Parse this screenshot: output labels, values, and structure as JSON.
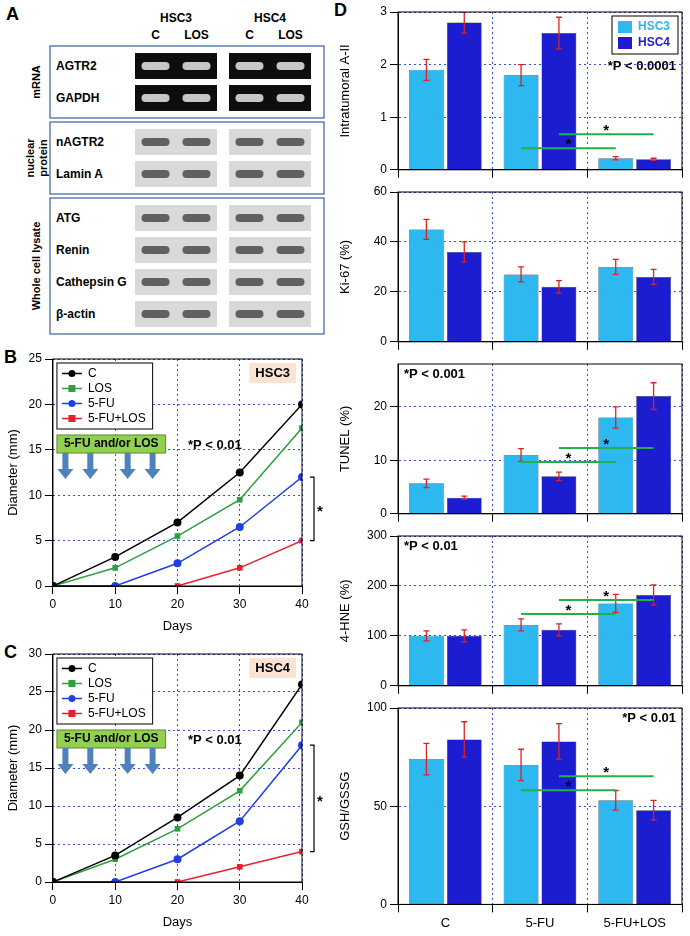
{
  "panel_a": {
    "label": "A",
    "cell_lines": [
      "HSC3",
      "HSC4"
    ],
    "lanes": [
      "C",
      "LOS"
    ],
    "groups": [
      {
        "name": "mRNA",
        "band_style": "light_on_dark",
        "rows": [
          "AGTR2",
          "GAPDH"
        ]
      },
      {
        "name": "nuclear protein",
        "band_style": "dark_on_light",
        "rows": [
          "nAGTR2",
          "Lamin A"
        ]
      },
      {
        "name": "Whole cell lysate",
        "band_style": "dark_on_light",
        "rows": [
          "ATG",
          "Renin",
          "Cathepsin G",
          "β-actin"
        ]
      }
    ]
  },
  "chart_data": [
    {
      "panel": "B",
      "type": "line",
      "title": "HSC3",
      "x_label": "Days",
      "y_label": "Diameter (mm)",
      "x": [
        0,
        10,
        20,
        30,
        40
      ],
      "xlim": [
        0,
        40
      ],
      "xticks": [
        0,
        10,
        20,
        30,
        40
      ],
      "ylim": [
        0,
        25
      ],
      "yticks": [
        0,
        5,
        10,
        15,
        20,
        25
      ],
      "grid": true,
      "legend": "top-left",
      "series": [
        {
          "name": "C",
          "color": "#000000",
          "marker": "circle",
          "values": [
            0,
            3.2,
            7,
            12.5,
            20
          ]
        },
        {
          "name": "LOS",
          "color": "#2e9e3e",
          "marker": "square",
          "values": [
            0,
            2,
            5.5,
            9.5,
            17.4
          ]
        },
        {
          "name": "5-FU",
          "color": "#1f3fe0",
          "marker": "circle",
          "values": [
            0,
            0,
            2.5,
            6.5,
            12
          ]
        },
        {
          "name": "5-FU+LOS",
          "color": "#e8202a",
          "marker": "square",
          "values": [
            0,
            0,
            0,
            2,
            5
          ]
        }
      ],
      "treatment": {
        "label": "5-FU and/or LOS",
        "days": [
          2,
          6,
          12,
          16
        ]
      },
      "annotations": [
        {
          "text": "*P < 0.01"
        }
      ],
      "comparisons": [
        {
          "text": "*",
          "series": [
            "5-FU",
            "5-FU+LOS"
          ],
          "at": 40
        }
      ]
    },
    {
      "panel": "C",
      "type": "line",
      "title": "HSC4",
      "x_label": "Days",
      "y_label": "Diameter (mm)",
      "x": [
        0,
        10,
        20,
        30,
        40
      ],
      "xlim": [
        0,
        40
      ],
      "xticks": [
        0,
        10,
        20,
        30,
        40
      ],
      "ylim": [
        0,
        30
      ],
      "yticks": [
        0,
        5,
        10,
        15,
        20,
        25,
        30
      ],
      "grid": true,
      "legend": "top-left",
      "series": [
        {
          "name": "C",
          "color": "#000000",
          "marker": "circle",
          "values": [
            0,
            3.5,
            8.5,
            14,
            26
          ]
        },
        {
          "name": "LOS",
          "color": "#2e9e3e",
          "marker": "square",
          "values": [
            0,
            3,
            7,
            12,
            21
          ]
        },
        {
          "name": "5-FU",
          "color": "#1f3fe0",
          "marker": "circle",
          "values": [
            0,
            0,
            3,
            8,
            18
          ]
        },
        {
          "name": "5-FU+LOS",
          "color": "#e8202a",
          "marker": "square",
          "values": [
            0,
            0,
            0,
            2,
            4
          ]
        }
      ],
      "treatment": {
        "label": "5-FU and/or LOS",
        "days": [
          2,
          6,
          12,
          16
        ]
      },
      "annotations": [
        {
          "text": "*P < 0.01"
        }
      ],
      "comparisons": [
        {
          "text": "*",
          "series": [
            "5-FU",
            "5-FU+LOS"
          ],
          "at": 40
        }
      ]
    },
    {
      "panel": "D",
      "type": "bar",
      "y_label": "Intratumoral A-II",
      "categories": [
        "C",
        "5-FU",
        "5-FU+LOS"
      ],
      "ylim": [
        0,
        3
      ],
      "yticks": [
        0,
        1,
        2,
        3
      ],
      "grid": true,
      "legend": "top-right",
      "tick_labels": "y",
      "series": [
        {
          "name": "HSC3",
          "color": "#2db8ef",
          "values": [
            1.9,
            1.8,
            0.22
          ],
          "errors": [
            0.2,
            0.2,
            0.03
          ]
        },
        {
          "name": "HSC4",
          "color": "#1c1cd0",
          "values": [
            2.8,
            2.6,
            0.2
          ],
          "errors": [
            0.2,
            0.3,
            0.02
          ]
        }
      ],
      "annotations": [
        {
          "text": "*P < 0.0001"
        }
      ],
      "comparisons": [
        {
          "text": "*",
          "series": "HSC3",
          "from": "5-FU",
          "to": "5-FU+LOS"
        },
        {
          "text": "*",
          "series": "HSC4",
          "from": "5-FU",
          "to": "5-FU+LOS"
        }
      ]
    },
    {
      "type": "bar",
      "y_label": "Ki-67 (%)",
      "categories": [
        "C",
        "5-FU",
        "5-FU+LOS"
      ],
      "ylim": [
        0,
        60
      ],
      "yticks": [
        0,
        20,
        40,
        60
      ],
      "grid": true,
      "tick_labels": "y",
      "series": [
        {
          "name": "HSC3",
          "color": "#2db8ef",
          "values": [
            45,
            27,
            30
          ],
          "errors": [
            4,
            3,
            3
          ]
        },
        {
          "name": "HSC4",
          "color": "#1c1cd0",
          "values": [
            36,
            22,
            26
          ],
          "errors": [
            4,
            2.5,
            3
          ]
        }
      ]
    },
    {
      "type": "bar",
      "y_label": "TUNEL (%)",
      "categories": [
        "C",
        "5-FU",
        "5-FU+LOS"
      ],
      "ylim": [
        0,
        28
      ],
      "yticks": [
        0,
        10,
        20
      ],
      "grid": true,
      "tick_labels": "y",
      "series": [
        {
          "name": "HSC3",
          "color": "#2db8ef",
          "values": [
            5.7,
            11,
            18
          ],
          "errors": [
            0.8,
            1.2,
            2
          ]
        },
        {
          "name": "HSC4",
          "color": "#1c1cd0",
          "values": [
            3,
            7,
            22
          ],
          "errors": [
            0.3,
            0.8,
            2.5
          ]
        }
      ],
      "annotations": [
        {
          "text": "*P < 0.001"
        }
      ],
      "comparisons": [
        {
          "text": "*",
          "series": "HSC3",
          "from": "5-FU",
          "to": "5-FU+LOS"
        },
        {
          "text": "*",
          "series": "HSC4",
          "from": "5-FU",
          "to": "5-FU+LOS"
        }
      ]
    },
    {
      "type": "bar",
      "y_label": "4-HNE (%)",
      "categories": [
        "C",
        "5-FU",
        "5-FU+LOS"
      ],
      "ylim": [
        0,
        300
      ],
      "yticks": [
        0,
        100,
        200,
        300
      ],
      "grid": true,
      "tick_labels": "y",
      "series": [
        {
          "name": "HSC3",
          "color": "#2db8ef",
          "values": [
            100,
            122,
            165
          ],
          "errors": [
            10,
            12,
            18
          ]
        },
        {
          "name": "HSC4",
          "color": "#1c1cd0",
          "values": [
            100,
            112,
            182
          ],
          "errors": [
            12,
            12,
            20
          ]
        }
      ],
      "annotations": [
        {
          "text": "*P < 0.01"
        }
      ],
      "comparisons": [
        {
          "text": "*",
          "series": "HSC3",
          "from": "5-FU",
          "to": "5-FU+LOS"
        },
        {
          "text": "*",
          "series": "HSC4",
          "from": "5-FU",
          "to": "5-FU+LOS"
        }
      ]
    },
    {
      "type": "bar",
      "y_label": "GSH/GSSG",
      "categories": [
        "C",
        "5-FU",
        "5-FU+LOS"
      ],
      "ylim": [
        0,
        100
      ],
      "yticks": [
        0,
        50,
        100
      ],
      "grid": true,
      "series": [
        {
          "name": "HSC3",
          "color": "#2db8ef",
          "values": [
            74,
            71,
            53
          ],
          "errors": [
            8,
            8,
            5
          ]
        },
        {
          "name": "HSC4",
          "color": "#1c1cd0",
          "values": [
            84,
            83,
            48
          ],
          "errors": [
            9,
            9,
            5
          ]
        }
      ],
      "annotations": [
        {
          "text": "*P < 0.01"
        }
      ],
      "comparisons": [
        {
          "text": "*",
          "series": "HSC3",
          "from": "5-FU",
          "to": "5-FU+LOS"
        },
        {
          "text": "*",
          "series": "HSC4",
          "from": "5-FU",
          "to": "5-FU+LOS"
        }
      ]
    }
  ]
}
